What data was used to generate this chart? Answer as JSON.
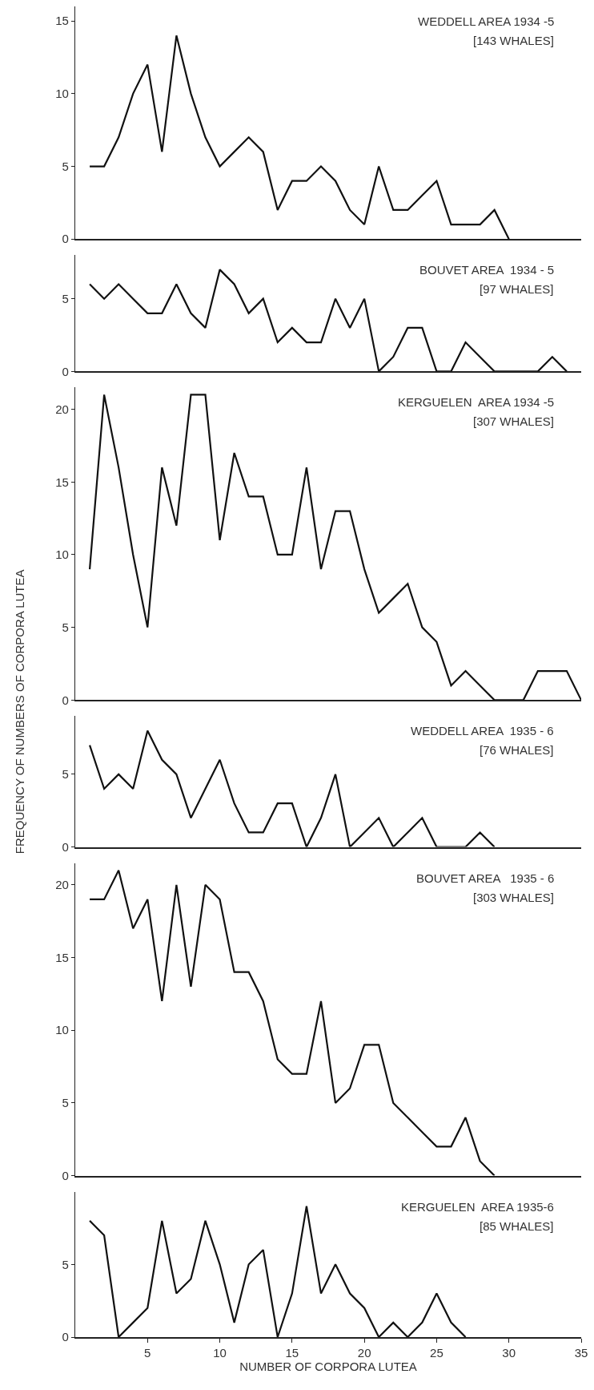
{
  "chart_data": [
    {
      "type": "line",
      "title": "WEDDELL AREA 1934 -5",
      "subtitle": "[143 WHALES]",
      "x": [
        1,
        2,
        3,
        4,
        5,
        6,
        7,
        8,
        9,
        10,
        11,
        12,
        13,
        14,
        15,
        16,
        17,
        18,
        19,
        20,
        21,
        22,
        23,
        24,
        25,
        26,
        27,
        28,
        29,
        30
      ],
      "values": [
        5,
        5,
        7,
        10,
        12,
        6,
        14,
        10,
        7,
        5,
        6,
        7,
        6,
        2,
        4,
        4,
        5,
        4,
        2,
        1,
        5,
        2,
        2,
        3,
        4,
        1,
        1,
        1,
        2,
        0
      ],
      "color": "#111111",
      "xlim": [
        0,
        35
      ],
      "ylim": [
        0,
        16
      ],
      "yticks": [
        0,
        5,
        10,
        15
      ],
      "tick_labels": "y"
    },
    {
      "type": "line",
      "title": "BOUVET AREA  1934 - 5",
      "subtitle": "[97 WHALES]",
      "x": [
        1,
        2,
        3,
        4,
        5,
        6,
        7,
        8,
        9,
        10,
        11,
        12,
        13,
        14,
        15,
        16,
        17,
        18,
        19,
        20,
        21,
        22,
        23,
        24,
        25,
        26,
        27,
        28,
        29,
        30,
        31,
        32,
        33,
        34
      ],
      "values": [
        6,
        5,
        6,
        5,
        4,
        4,
        6,
        4,
        3,
        7,
        6,
        4,
        5,
        2,
        3,
        2,
        2,
        5,
        3,
        5,
        0,
        1,
        3,
        3,
        0,
        0,
        2,
        1,
        0,
        0,
        0,
        0,
        1,
        0
      ],
      "color": "#111111",
      "xlim": [
        0,
        35
      ],
      "ylim": [
        0,
        8
      ],
      "yticks": [
        0,
        5
      ],
      "tick_labels": "y"
    },
    {
      "type": "line",
      "title": "KERGUELEN  AREA 1934 -5",
      "subtitle": "[307 WHALES]",
      "ylabel": "FREQUENCY OF NUMBERS OF CORPORA LUTEA",
      "x": [
        1,
        2,
        3,
        4,
        5,
        6,
        7,
        8,
        9,
        10,
        11,
        12,
        13,
        14,
        15,
        16,
        17,
        18,
        19,
        20,
        21,
        22,
        23,
        24,
        25,
        26,
        27,
        28,
        29,
        30,
        31,
        32,
        33,
        34,
        35
      ],
      "values": [
        9,
        21,
        16,
        10,
        5,
        16,
        12,
        21,
        21,
        11,
        17,
        14,
        14,
        10,
        10,
        16,
        9,
        13,
        13,
        9,
        6,
        7,
        8,
        5,
        4,
        1,
        2,
        1,
        0,
        0,
        0,
        2,
        2,
        2,
        0
      ],
      "color": "#111111",
      "xlim": [
        0,
        35
      ],
      "ylim": [
        0,
        21.5
      ],
      "yticks": [
        0,
        5,
        10,
        15,
        20
      ],
      "tick_labels": "y"
    },
    {
      "type": "line",
      "title": "WEDDELL AREA  1935 - 6",
      "subtitle": "[76 WHALES]",
      "x": [
        1,
        2,
        3,
        4,
        5,
        6,
        7,
        8,
        9,
        10,
        11,
        12,
        13,
        14,
        15,
        16,
        17,
        18,
        19,
        20,
        21,
        22,
        23,
        24,
        25,
        26,
        27,
        28,
        29
      ],
      "values": [
        7,
        4,
        5,
        4,
        8,
        6,
        5,
        2,
        4,
        6,
        3,
        1,
        1,
        3,
        3,
        0,
        2,
        5,
        0,
        1,
        2,
        0,
        1,
        2,
        0,
        0,
        0,
        1,
        0
      ],
      "color": "#111111",
      "xlim": [
        0,
        35
      ],
      "ylim": [
        0,
        9
      ],
      "yticks": [
        0,
        5
      ],
      "tick_labels": "y"
    },
    {
      "type": "line",
      "title": "BOUVET AREA   1935 - 6",
      "subtitle": "[303 WHALES]",
      "x": [
        1,
        2,
        3,
        4,
        5,
        6,
        7,
        8,
        9,
        10,
        11,
        12,
        13,
        14,
        15,
        16,
        17,
        18,
        19,
        20,
        21,
        22,
        23,
        24,
        25,
        26,
        27,
        28,
        29
      ],
      "values": [
        19,
        19,
        21,
        17,
        19,
        12,
        20,
        13,
        20,
        19,
        14,
        14,
        12,
        8,
        7,
        7,
        12,
        5,
        6,
        9,
        9,
        5,
        4,
        3,
        2,
        2,
        4,
        1,
        0
      ],
      "color": "#111111",
      "xlim": [
        0,
        35
      ],
      "ylim": [
        0,
        21.5
      ],
      "yticks": [
        0,
        5,
        10,
        15,
        20
      ],
      "tick_labels": "y"
    },
    {
      "type": "line",
      "title": "KERGUELEN  AREA 1935-6",
      "subtitle": "[85 WHALES]",
      "xlabel": "NUMBER OF CORPORA LUTEA",
      "x": [
        1,
        2,
        3,
        4,
        5,
        6,
        7,
        8,
        9,
        10,
        11,
        12,
        13,
        14,
        15,
        16,
        17,
        18,
        19,
        20,
        21,
        22,
        23,
        24,
        25,
        26,
        27
      ],
      "values": [
        8,
        7,
        0,
        1,
        2,
        8,
        3,
        4,
        8,
        5,
        1,
        5,
        6,
        0,
        3,
        9,
        3,
        5,
        3,
        2,
        0,
        1,
        0,
        1,
        3,
        1,
        0
      ],
      "color": "#111111",
      "xlim": [
        0,
        35
      ],
      "ylim": [
        0,
        10
      ],
      "yticks": [
        0,
        5
      ],
      "xticks": [
        5,
        10,
        15,
        20,
        25,
        30,
        35
      ]
    }
  ]
}
